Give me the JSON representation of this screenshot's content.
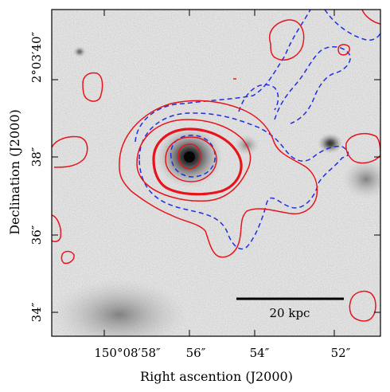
{
  "figure": {
    "xlabel": "Right ascention (J2000)",
    "ylabel": "Declination (J2000)",
    "x_ticks": [
      "150°08′58″",
      "56″",
      "54″",
      "52″"
    ],
    "y_ticks": [
      "2°03′40″",
      "38″",
      "36″",
      "34″"
    ],
    "scale_bar_label": "20 kpc",
    "colors": {
      "contour_solid": "#e8141c",
      "contour_dashed": "#1f2fe0",
      "frame": "#000000",
      "scale_bar": "#000000"
    },
    "contour_styles": [
      "solid",
      "dashed"
    ]
  }
}
